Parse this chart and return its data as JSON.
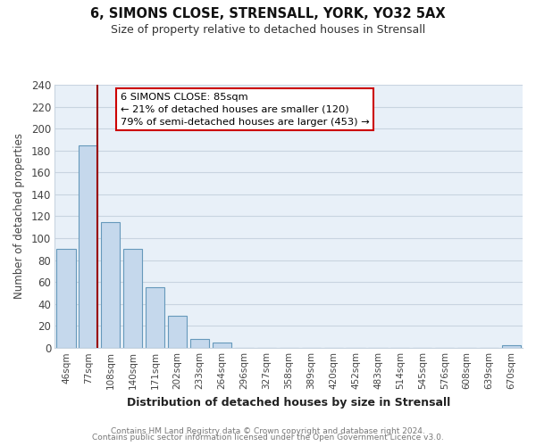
{
  "title": "6, SIMONS CLOSE, STRENSALL, YORK, YO32 5AX",
  "subtitle": "Size of property relative to detached houses in Strensall",
  "xlabel": "Distribution of detached houses by size in Strensall",
  "ylabel": "Number of detached properties",
  "bar_labels": [
    "46sqm",
    "77sqm",
    "108sqm",
    "140sqm",
    "171sqm",
    "202sqm",
    "233sqm",
    "264sqm",
    "296sqm",
    "327sqm",
    "358sqm",
    "389sqm",
    "420sqm",
    "452sqm",
    "483sqm",
    "514sqm",
    "545sqm",
    "576sqm",
    "608sqm",
    "639sqm",
    "670sqm"
  ],
  "bar_values": [
    90,
    185,
    115,
    90,
    55,
    29,
    8,
    5,
    0,
    0,
    0,
    0,
    0,
    0,
    0,
    0,
    0,
    0,
    0,
    0,
    2
  ],
  "bar_color": "#c5d8ec",
  "bar_edge_color": "#6699bb",
  "plot_bg_color": "#e8f0f8",
  "ylim": [
    0,
    240
  ],
  "yticks": [
    0,
    20,
    40,
    60,
    80,
    100,
    120,
    140,
    160,
    180,
    200,
    220,
    240
  ],
  "marker_color": "#990000",
  "annotation_title": "6 SIMONS CLOSE: 85sqm",
  "annotation_line1": "← 21% of detached houses are smaller (120)",
  "annotation_line2": "79% of semi-detached houses are larger (453) →",
  "footer1": "Contains HM Land Registry data © Crown copyright and database right 2024.",
  "footer2": "Contains public sector information licensed under the Open Government Licence v3.0.",
  "background_color": "#ffffff",
  "grid_color": "#c8d4e0"
}
